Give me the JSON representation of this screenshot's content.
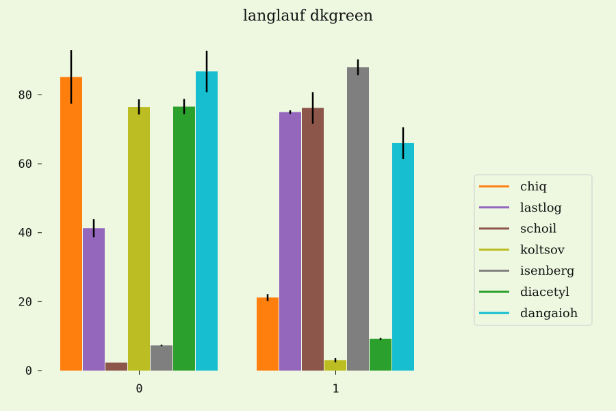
{
  "chart_data": {
    "type": "bar",
    "title": "langlauf dkgreen",
    "xlabel": "",
    "ylabel": "",
    "categories": [
      "0",
      "1"
    ],
    "ylim": [
      0,
      95
    ],
    "yticks": [
      0,
      20,
      40,
      60,
      80
    ],
    "grid": false,
    "legend_position": "right",
    "series": [
      {
        "name": "chiq",
        "color": "#ff7f0e",
        "values": [
          85.2,
          21.2
        ],
        "errors": [
          7.8,
          1.0
        ]
      },
      {
        "name": "lastlog",
        "color": "#9467bd",
        "values": [
          41.3,
          75.0
        ],
        "errors": [
          2.6,
          0.5
        ]
      },
      {
        "name": "schoil",
        "color": "#8c564b",
        "values": [
          2.3,
          76.2
        ],
        "errors": [
          0.0,
          4.6
        ]
      },
      {
        "name": "koltsov",
        "color": "#bcbd22",
        "values": [
          76.5,
          3.0
        ],
        "errors": [
          2.2,
          0.6
        ]
      },
      {
        "name": "isenberg",
        "color": "#7f7f7f",
        "values": [
          7.3,
          88.0
        ],
        "errors": [
          0.2,
          2.3
        ]
      },
      {
        "name": "diacetyl",
        "color": "#2ca02c",
        "values": [
          76.6,
          9.2
        ],
        "errors": [
          2.2,
          0.3
        ]
      },
      {
        "name": "dangaioh",
        "color": "#17becf",
        "values": [
          86.8,
          66.0
        ],
        "errors": [
          6.0,
          4.6
        ]
      }
    ]
  }
}
